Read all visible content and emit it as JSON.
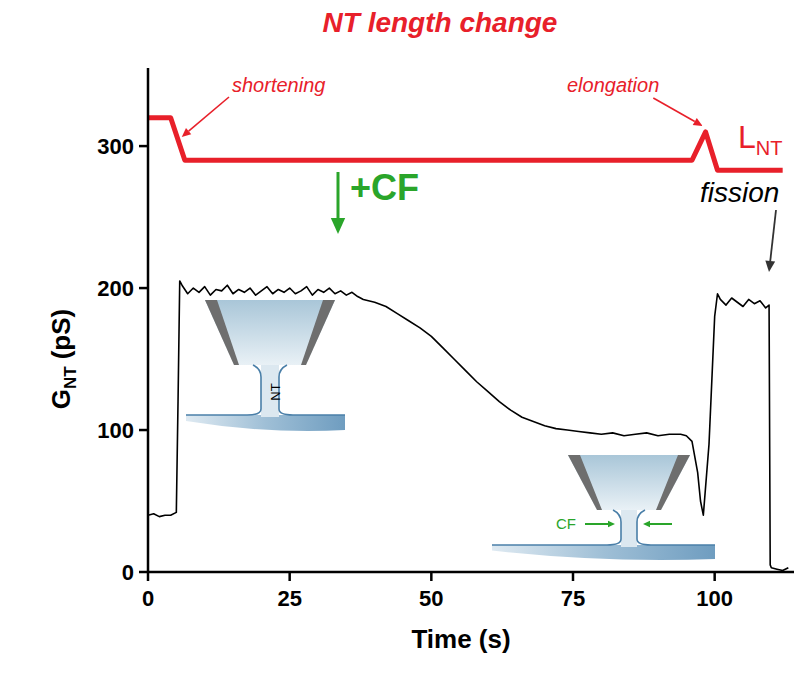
{
  "chart_data": {
    "type": "line",
    "title": "NT length change",
    "xlabel": "Time (s)",
    "ylabel": {
      "base": "G",
      "subscript": "NT",
      "unit": "(pS)"
    },
    "xlim": [
      0,
      114
    ],
    "ylim": [
      0,
      355
    ],
    "xticks": [
      0,
      25,
      50,
      75,
      100
    ],
    "yticks": [
      0,
      100,
      200,
      300
    ],
    "grid": false,
    "series": [
      {
        "color": "#000000",
        "line_style": "solid",
        "x": [
          0,
          1,
          2,
          3,
          4,
          5,
          5.3,
          5.6,
          6,
          7,
          8,
          9,
          10,
          11,
          12,
          13,
          14,
          15,
          16,
          17,
          18,
          19,
          20,
          21,
          22,
          23,
          24,
          25,
          26,
          27,
          28,
          29,
          30,
          31,
          32,
          33,
          34,
          35,
          36,
          37,
          38,
          40,
          42,
          44,
          46,
          48,
          50,
          52,
          54,
          56,
          58,
          60,
          62,
          64,
          66,
          68,
          70,
          72,
          74,
          76,
          78,
          80,
          82,
          84,
          86,
          88,
          90,
          92,
          94,
          95,
          96,
          97,
          97.5,
          98,
          99,
          100,
          100.5,
          101,
          102,
          103,
          104,
          105,
          106,
          107,
          108,
          109,
          109.6,
          109.8,
          110,
          111,
          112,
          113
        ],
        "values": [
          40,
          41,
          39,
          40,
          40,
          42,
          120,
          205,
          202,
          196,
          200,
          197,
          201,
          195,
          199,
          198,
          202,
          196,
          199,
          197,
          200,
          195,
          198,
          201,
          196,
          199,
          197,
          200,
          196,
          198,
          201,
          195,
          199,
          197,
          200,
          196,
          198,
          195,
          197,
          194,
          192,
          190,
          187,
          182,
          177,
          172,
          166,
          158,
          150,
          142,
          134,
          127,
          120,
          114,
          109,
          106,
          103,
          101,
          100,
          99,
          98,
          97,
          98,
          96,
          97,
          98,
          96,
          97,
          97,
          96,
          92,
          70,
          50,
          40,
          90,
          180,
          196,
          192,
          188,
          193,
          190,
          187,
          192,
          189,
          191,
          186,
          188,
          5,
          3,
          2,
          1,
          3
        ]
      },
      {
        "name": "L",
        "name_subscript": "NT",
        "color": "#e8202a",
        "line_style": "solid",
        "x": [
          0,
          4,
          6.5,
          96,
          98.4,
          100.5,
          112
        ],
        "values": [
          320,
          320,
          290,
          290,
          310,
          283,
          283
        ]
      }
    ],
    "annotations": [
      {
        "text": "shortening",
        "color": "#e8202a"
      },
      {
        "text": "elongation",
        "color": "#e8202a"
      },
      {
        "text": "+CF",
        "color": "#2aa52a"
      },
      {
        "text": "fission",
        "color": "#000000"
      }
    ],
    "inset_labels": [
      {
        "text": "NT",
        "color": "#000000"
      },
      {
        "text": "CF",
        "color": "#2aa52a"
      }
    ]
  }
}
